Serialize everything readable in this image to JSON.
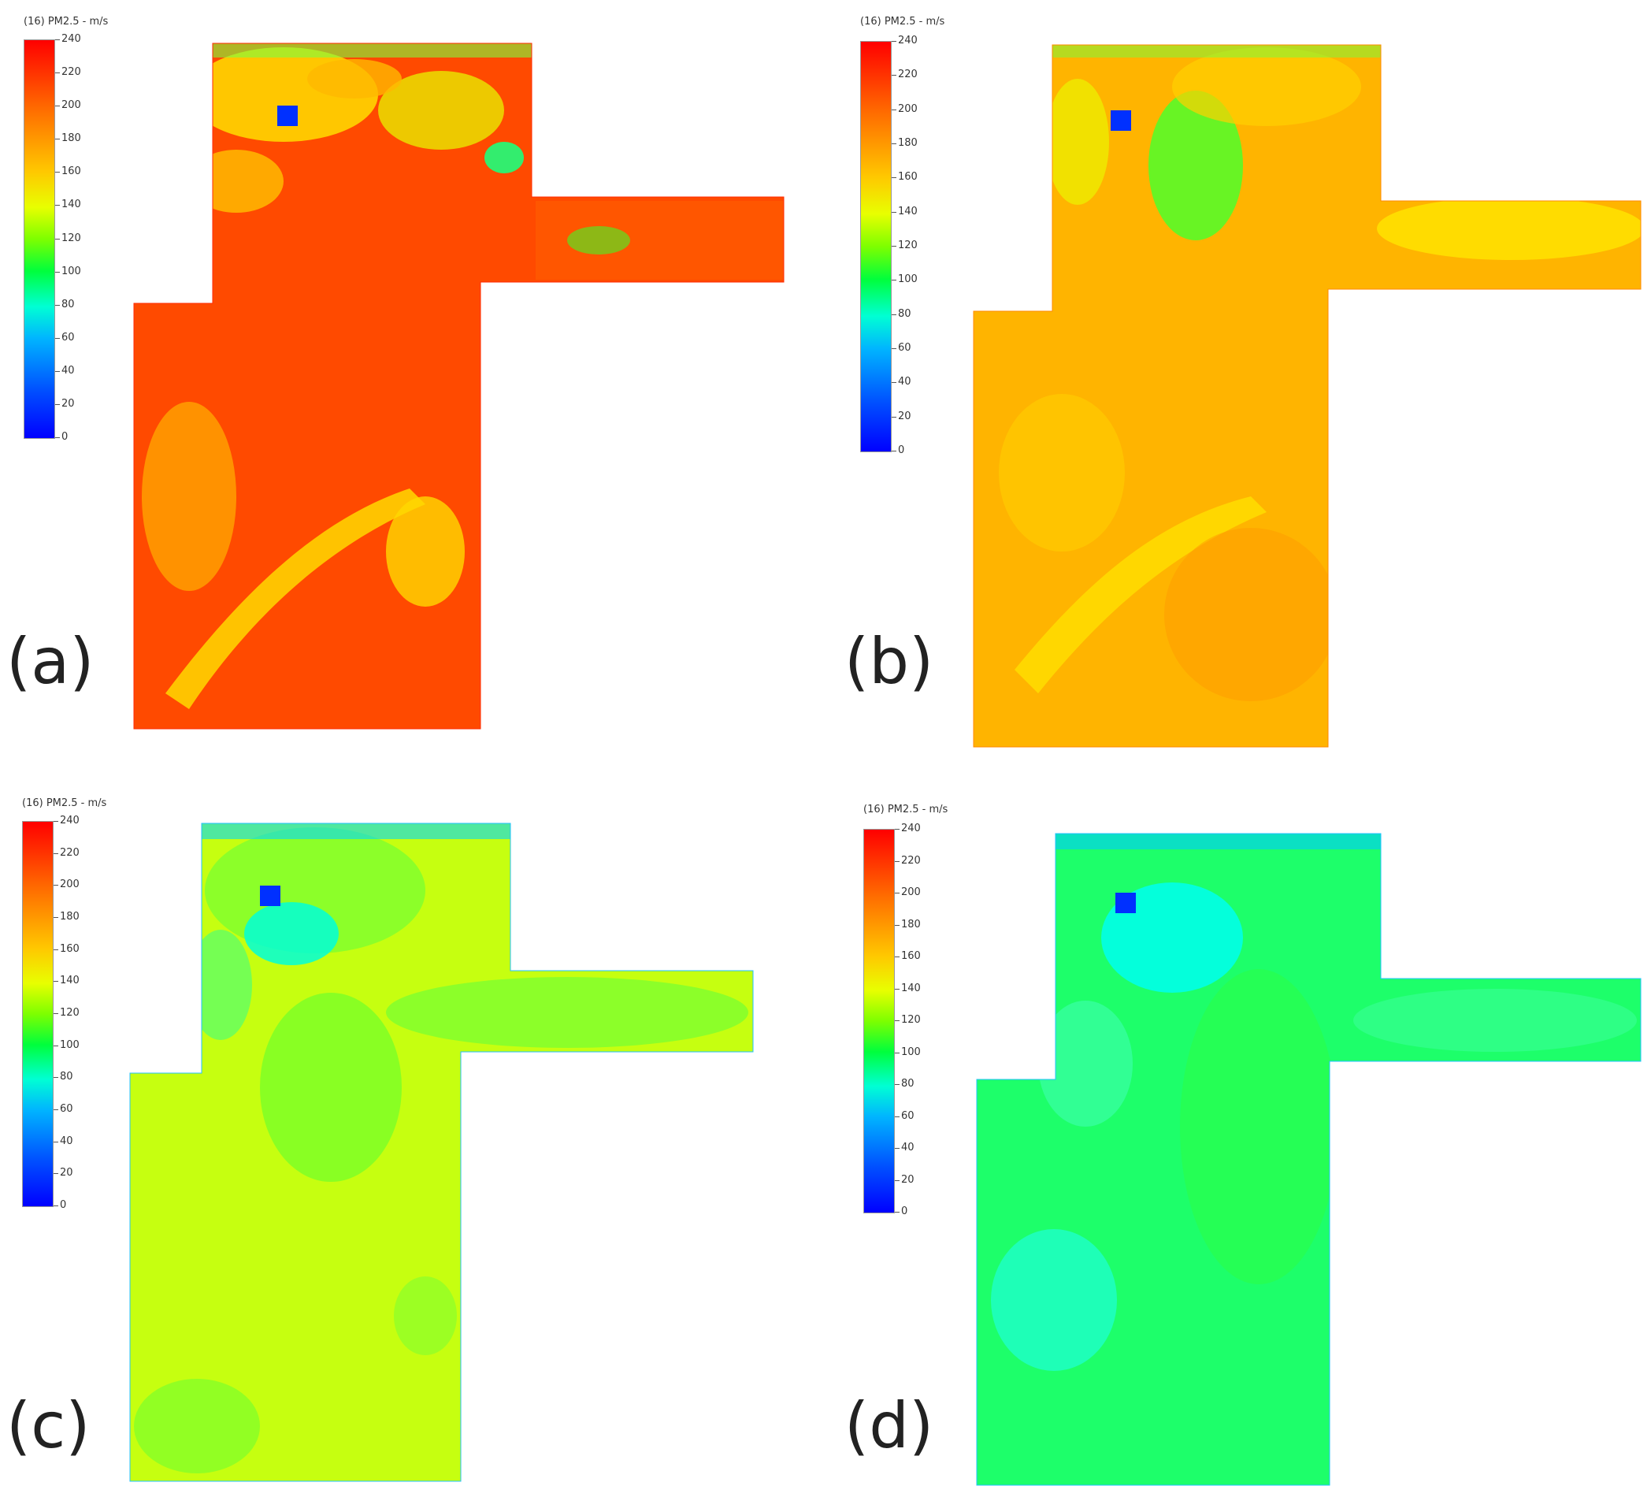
{
  "panels": [
    {
      "label": "(a)",
      "colorbar_title": "(16) PM2.5 - m/s",
      "theme": "high"
    },
    {
      "label": "(b)",
      "colorbar_title": "(16) PM2.5 - m/s",
      "theme": "midhigh"
    },
    {
      "label": "(c)",
      "colorbar_title": "(16) PM2.5 - m/s",
      "theme": "mid"
    },
    {
      "label": "(d)",
      "colorbar_title": "(16) PM2.5 - m/s",
      "theme": "low"
    }
  ],
  "colorbar_ticks": [
    "240",
    "220",
    "200",
    "180",
    "160",
    "140",
    "120",
    "100",
    "80",
    "60",
    "40",
    "20",
    "0"
  ],
  "colors": {
    "red": "#ff3a00",
    "orange": "#ff9a00",
    "yellow": "#f2ff00",
    "green": "#1dff3a",
    "cyan": "#00ffee",
    "blue": "#0030ff"
  }
}
